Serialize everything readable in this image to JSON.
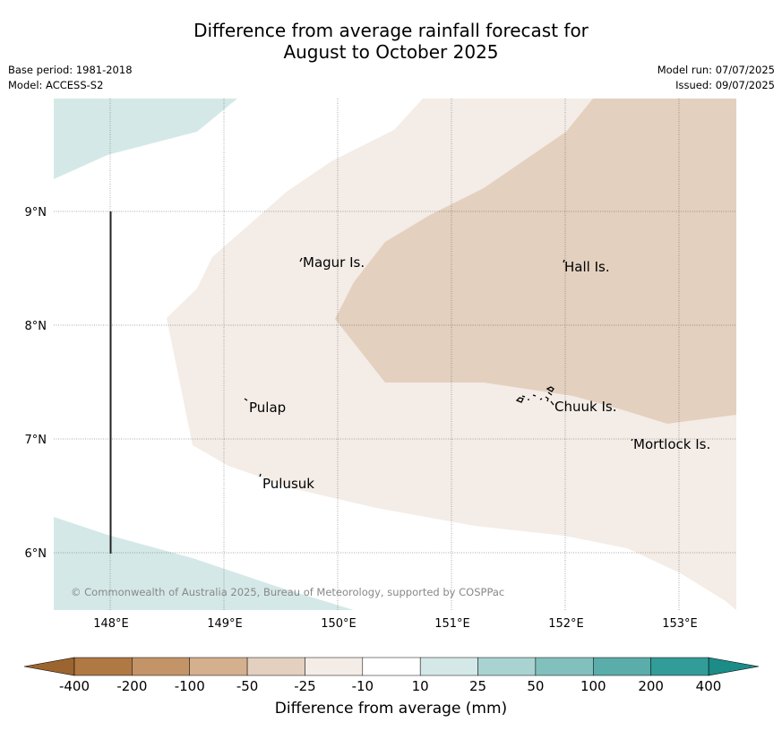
{
  "title": {
    "line1": "Difference from average rainfall forecast for",
    "line2": "August to October 2025"
  },
  "meta": {
    "base_period": "Base period: 1981-2018",
    "model": "Model: ACCESS-S2",
    "model_run": "Model run: 07/07/2025",
    "issued": "Issued: 09/07/2025"
  },
  "map": {
    "lon_labels": [
      "148°E",
      "149°E",
      "150°E",
      "151°E",
      "152°E",
      "153°E"
    ],
    "lat_labels": [
      "9°N",
      "8°N",
      "7°N",
      "6°N"
    ],
    "places": [
      "Magur Is.",
      "Hall Is.",
      "Pulap",
      "Chuuk Is.",
      "Mortlock Is.",
      "Pulusuk"
    ],
    "copyright": "© Commonwealth of Australia 2025, Bureau of Meteorology, supported by COSPPac",
    "category_colors": {
      "-50 to -25": "#e3d0bf",
      "-25 to -10": "#f4ece6",
      "10 to 25": "#d4e9e7"
    }
  },
  "colorbar": {
    "ticks": [
      "-400",
      "-200",
      "-100",
      "-50",
      "-25",
      "-10",
      "10",
      "25",
      "50",
      "100",
      "200",
      "400"
    ],
    "colors": [
      "#b07843",
      "#c39467",
      "#d4b08f",
      "#e3d0bf",
      "#f4ece6",
      "#ffffff",
      "#d4e9e7",
      "#a9d3d1",
      "#82c0bd",
      "#5aadaa",
      "#329c98"
    ],
    "low_extend_color": "#9c6530",
    "high_extend_color": "#1b8c87",
    "label": "Difference from average (mm)"
  }
}
